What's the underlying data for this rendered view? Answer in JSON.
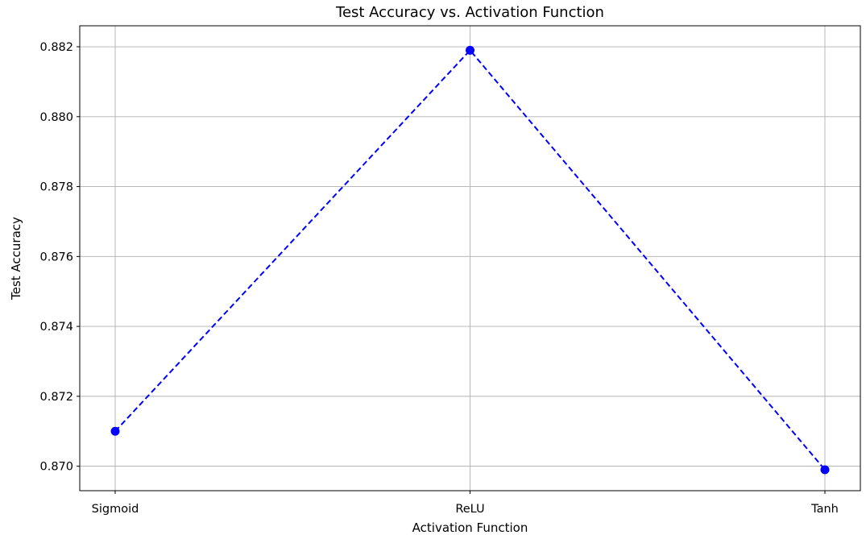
{
  "chart_data": {
    "type": "line",
    "title": "Test Accuracy vs. Activation Function",
    "xlabel": "Activation Function",
    "ylabel": "Test Accuracy",
    "categories": [
      "Sigmoid",
      "ReLU",
      "Tanh"
    ],
    "series": [
      {
        "values": [
          0.871,
          0.8819,
          0.8699
        ]
      }
    ],
    "ylim": [
      0.8693,
      0.8826
    ],
    "yticks": [
      "0.870",
      "0.872",
      "0.874",
      "0.876",
      "0.878",
      "0.880",
      "0.882"
    ],
    "grid": true,
    "line_style": "dashed",
    "marker": "circle",
    "line_color": "#0000ff"
  }
}
